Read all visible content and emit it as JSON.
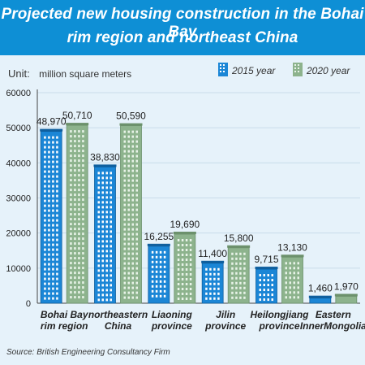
{
  "title": {
    "line1": "Projected new housing construction in the Bohai Bay",
    "line2": "rim region and northeast China"
  },
  "unit": {
    "label": "Unit:",
    "value": "million square meters"
  },
  "source": "Source: British Engineering Consultancy Firm",
  "colors": {
    "title_bg": "#0e8fd5",
    "background": "#e6f2fa",
    "series_2015": "#1b86d6",
    "series_2015_window": "#ffffff",
    "series_2020": "#8db38d",
    "series_2020_window": "#e8f3e8"
  },
  "legend": [
    {
      "label": "2015 year",
      "icon": "blue-building-icon"
    },
    {
      "label": "2020 year",
      "icon": "green-building-icon"
    }
  ],
  "chart_data": {
    "type": "bar",
    "categories": [
      [
        "Bohai Bay",
        "rim region"
      ],
      [
        "northeastern",
        "China"
      ],
      [
        "Liaoning",
        "province"
      ],
      [
        "Jilin",
        "province"
      ],
      [
        "Heilongjiang",
        "province"
      ],
      [
        "Eastern",
        "InnerMongolia"
      ]
    ],
    "series": [
      {
        "name": "2015 year",
        "values": [
          48970,
          38830,
          16255,
          11400,
          9715,
          1460
        ],
        "labels": [
          "48,970",
          "38,830",
          "16,255",
          "11,400",
          "9,715",
          "1,460"
        ]
      },
      {
        "name": "2020 year",
        "values": [
          50710,
          50590,
          19690,
          15800,
          13130,
          1970
        ],
        "labels": [
          "50,710",
          "50,590",
          "19,690",
          "15,800",
          "13,130",
          "1,970"
        ]
      }
    ],
    "ylim": [
      0,
      60000
    ],
    "yticks": [
      0,
      10000,
      20000,
      30000,
      40000,
      50000,
      60000
    ],
    "ytick_labels": [
      "0",
      "10000",
      "20000",
      "30000",
      "40000",
      "50000",
      "60000"
    ],
    "grid": true,
    "legend_position": "top-right"
  }
}
